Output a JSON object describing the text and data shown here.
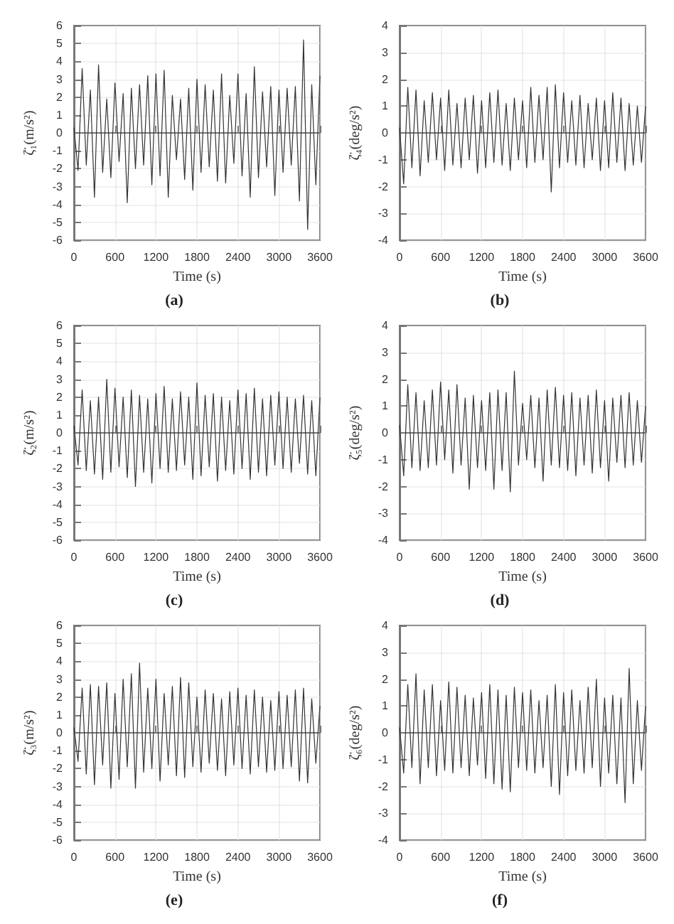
{
  "chart_data": [
    {
      "type": "line",
      "xlabel": "Time (s)",
      "ylabel": "ζ̈₁(m/s²)",
      "annotations": [
        "(a)"
      ],
      "grid": true,
      "xlim": [
        0,
        3600
      ],
      "xticks": [
        0,
        600,
        1200,
        1800,
        2400,
        3000,
        3600
      ],
      "ylim": [
        -6,
        6
      ],
      "yticks": [
        -6,
        -5,
        -4,
        -3,
        -2,
        -1,
        0,
        1,
        2,
        3,
        4,
        5,
        6
      ],
      "x": [
        0,
        60,
        120,
        180,
        240,
        300,
        360,
        420,
        480,
        540,
        600,
        660,
        720,
        780,
        840,
        900,
        960,
        1020,
        1080,
        1140,
        1200,
        1260,
        1320,
        1380,
        1440,
        1500,
        1560,
        1620,
        1680,
        1740,
        1800,
        1860,
        1920,
        1980,
        2040,
        2100,
        2160,
        2220,
        2280,
        2340,
        2400,
        2460,
        2520,
        2580,
        2640,
        2700,
        2760,
        2820,
        2880,
        2940,
        3000,
        3060,
        3120,
        3180,
        3240,
        3300,
        3360,
        3420,
        3480,
        3540,
        3600
      ],
      "series": [
        {
          "color": "#333333",
          "values": [
            0.3,
            -2.1,
            3.6,
            -1.8,
            2.4,
            -3.6,
            3.8,
            -2.2,
            1.9,
            -2.5,
            2.8,
            -1.6,
            2.2,
            -3.9,
            2.5,
            -2.0,
            2.7,
            -1.8,
            3.2,
            -2.9,
            3.3,
            -2.4,
            3.5,
            -3.6,
            2.1,
            -1.5,
            1.9,
            -2.6,
            2.5,
            -3.2,
            3.0,
            -2.2,
            2.7,
            -1.9,
            2.4,
            -2.7,
            3.3,
            -2.8,
            2.1,
            -1.7,
            3.3,
            -2.4,
            2.2,
            -3.6,
            3.7,
            -2.5,
            2.3,
            -1.9,
            2.6,
            -3.5,
            2.4,
            -2.2,
            2.5,
            -1.8,
            2.6,
            -3.8,
            5.2,
            -5.4,
            2.7,
            -2.9,
            3.2
          ]
        }
      ]
    },
    {
      "type": "line",
      "xlabel": "Time (s)",
      "ylabel": "ζ̈₄(deg/s²)",
      "annotations": [
        "(b)"
      ],
      "grid": true,
      "xlim": [
        0,
        3600
      ],
      "xticks": [
        0,
        600,
        1200,
        1800,
        2400,
        3000,
        3600
      ],
      "ylim": [
        -4,
        4
      ],
      "yticks": [
        -4,
        -3,
        -2,
        -1,
        0,
        1,
        2,
        3,
        4
      ],
      "x": [
        0,
        60,
        120,
        180,
        240,
        300,
        360,
        420,
        480,
        540,
        600,
        660,
        720,
        780,
        840,
        900,
        960,
        1020,
        1080,
        1140,
        1200,
        1260,
        1320,
        1380,
        1440,
        1500,
        1560,
        1620,
        1680,
        1740,
        1800,
        1860,
        1920,
        1980,
        2040,
        2100,
        2160,
        2220,
        2280,
        2340,
        2400,
        2460,
        2520,
        2580,
        2640,
        2700,
        2760,
        2820,
        2880,
        2940,
        3000,
        3060,
        3120,
        3180,
        3240,
        3300,
        3360,
        3420,
        3480,
        3540,
        3600
      ],
      "series": [
        {
          "color": "#333333",
          "values": [
            0.2,
            -1.9,
            1.7,
            -1.3,
            1.6,
            -1.6,
            1.2,
            -1.1,
            1.5,
            -1.0,
            1.3,
            -1.4,
            1.6,
            -1.2,
            1.1,
            -1.3,
            1.3,
            -1.0,
            1.4,
            -1.5,
            1.2,
            -1.3,
            1.5,
            -1.1,
            1.6,
            -1.2,
            1.1,
            -1.4,
            1.3,
            -1.0,
            1.2,
            -1.3,
            1.7,
            -1.1,
            1.4,
            -1.0,
            1.7,
            -2.2,
            1.8,
            -1.3,
            1.5,
            -1.1,
            1.2,
            -1.2,
            1.4,
            -1.3,
            1.1,
            -1.0,
            1.3,
            -1.4,
            1.2,
            -1.3,
            1.5,
            -1.1,
            1.3,
            -1.4,
            1.1,
            -1.2,
            1.0,
            -1.1,
            1.0
          ]
        }
      ]
    },
    {
      "type": "line",
      "xlabel": "Time (s)",
      "ylabel": "ζ̈₂(m/s²)",
      "annotations": [
        "(c)"
      ],
      "grid": true,
      "xlim": [
        0,
        3600
      ],
      "xticks": [
        0,
        600,
        1200,
        1800,
        2400,
        3000,
        3600
      ],
      "ylim": [
        -6,
        6
      ],
      "yticks": [
        -6,
        -5,
        -4,
        -3,
        -2,
        -1,
        0,
        1,
        2,
        3,
        4,
        5,
        6
      ],
      "x": [
        0,
        60,
        120,
        180,
        240,
        300,
        360,
        420,
        480,
        540,
        600,
        660,
        720,
        780,
        840,
        900,
        960,
        1020,
        1080,
        1140,
        1200,
        1260,
        1320,
        1380,
        1440,
        1500,
        1560,
        1620,
        1680,
        1740,
        1800,
        1860,
        1920,
        1980,
        2040,
        2100,
        2160,
        2220,
        2280,
        2340,
        2400,
        2460,
        2520,
        2580,
        2640,
        2700,
        2760,
        2820,
        2880,
        2940,
        3000,
        3060,
        3120,
        3180,
        3240,
        3300,
        3360,
        3420,
        3480,
        3540,
        3600
      ],
      "series": [
        {
          "color": "#333333",
          "values": [
            0.4,
            -1.8,
            2.4,
            -2.1,
            1.8,
            -2.3,
            2.0,
            -2.6,
            3.0,
            -2.2,
            2.5,
            -1.9,
            2.0,
            -2.5,
            2.4,
            -3.0,
            2.1,
            -2.2,
            1.9,
            -2.8,
            2.2,
            -2.0,
            2.6,
            -2.2,
            1.9,
            -2.1,
            2.3,
            -1.8,
            2.0,
            -2.6,
            2.8,
            -2.4,
            2.1,
            -1.9,
            2.2,
            -2.7,
            2.0,
            -2.1,
            1.8,
            -2.3,
            2.4,
            -2.0,
            2.2,
            -2.6,
            2.5,
            -2.2,
            1.9,
            -2.4,
            2.1,
            -1.8,
            2.3,
            -2.0,
            2.0,
            -2.2,
            1.9,
            -1.7,
            2.1,
            -2.3,
            1.8,
            -2.4,
            2.0
          ]
        }
      ]
    },
    {
      "type": "line",
      "xlabel": "Time (s)",
      "ylabel": "ζ̈₅(deg/s²)",
      "annotations": [
        "(d)"
      ],
      "grid": true,
      "xlim": [
        0,
        3600
      ],
      "xticks": [
        0,
        600,
        1200,
        1800,
        2400,
        3000,
        3600
      ],
      "ylim": [
        -4,
        4
      ],
      "yticks": [
        -4,
        -3,
        -2,
        -1,
        0,
        1,
        2,
        3,
        4
      ],
      "x": [
        0,
        60,
        120,
        180,
        240,
        300,
        360,
        420,
        480,
        540,
        600,
        660,
        720,
        780,
        840,
        900,
        960,
        1020,
        1080,
        1140,
        1200,
        1260,
        1320,
        1380,
        1440,
        1500,
        1560,
        1620,
        1680,
        1740,
        1800,
        1860,
        1920,
        1980,
        2040,
        2100,
        2160,
        2220,
        2280,
        2340,
        2400,
        2460,
        2520,
        2580,
        2640,
        2700,
        2760,
        2820,
        2880,
        2940,
        3000,
        3060,
        3120,
        3180,
        3240,
        3300,
        3360,
        3420,
        3480,
        3540,
        3600
      ],
      "series": [
        {
          "color": "#333333",
          "values": [
            0.3,
            -1.6,
            1.8,
            -1.3,
            1.5,
            -1.4,
            1.2,
            -1.3,
            1.6,
            -1.2,
            1.9,
            -1.0,
            1.6,
            -1.5,
            1.8,
            -1.2,
            1.3,
            -2.1,
            1.4,
            -1.3,
            1.2,
            -1.4,
            1.5,
            -2.1,
            1.6,
            -1.4,
            1.5,
            -2.2,
            2.3,
            -1.2,
            1.1,
            -1.0,
            1.4,
            -1.3,
            1.3,
            -1.8,
            1.6,
            -1.2,
            1.7,
            -1.3,
            1.4,
            -1.4,
            1.5,
            -1.6,
            1.3,
            -1.2,
            1.4,
            -1.5,
            1.6,
            -1.3,
            1.2,
            -1.8,
            1.3,
            -1.1,
            1.4,
            -1.3,
            1.5,
            -1.2,
            1.2,
            -1.1,
            1.0
          ]
        }
      ]
    },
    {
      "type": "line",
      "xlabel": "Time (s)",
      "ylabel": "ζ̈₃(m/s²)",
      "annotations": [
        "(e)"
      ],
      "grid": true,
      "xlim": [
        0,
        3600
      ],
      "xticks": [
        0,
        600,
        1200,
        1800,
        2400,
        3000,
        3600
      ],
      "ylim": [
        -6,
        6
      ],
      "yticks": [
        -6,
        -5,
        -4,
        -3,
        -2,
        -1,
        0,
        1,
        2,
        3,
        4,
        5,
        6
      ],
      "x": [
        0,
        60,
        120,
        180,
        240,
        300,
        360,
        420,
        480,
        540,
        600,
        660,
        720,
        780,
        840,
        900,
        960,
        1020,
        1080,
        1140,
        1200,
        1260,
        1320,
        1380,
        1440,
        1500,
        1560,
        1620,
        1680,
        1740,
        1800,
        1860,
        1920,
        1980,
        2040,
        2100,
        2160,
        2220,
        2280,
        2340,
        2400,
        2460,
        2520,
        2580,
        2640,
        2700,
        2760,
        2820,
        2880,
        2940,
        3000,
        3060,
        3120,
        3180,
        3240,
        3300,
        3360,
        3420,
        3480,
        3540,
        3600
      ],
      "series": [
        {
          "color": "#333333",
          "values": [
            0.3,
            -1.6,
            2.5,
            -2.3,
            2.7,
            -2.9,
            2.6,
            -1.8,
            2.8,
            -3.1,
            2.2,
            -2.6,
            3.0,
            -1.9,
            3.3,
            -3.1,
            3.9,
            -2.2,
            2.5,
            -2.0,
            3.0,
            -2.7,
            2.2,
            -1.8,
            2.6,
            -2.4,
            3.1,
            -2.5,
            2.8,
            -1.9,
            2.0,
            -2.2,
            2.4,
            -1.7,
            2.2,
            -2.1,
            1.9,
            -2.4,
            2.3,
            -1.8,
            2.5,
            -2.0,
            2.1,
            -2.3,
            2.4,
            -1.9,
            2.0,
            -2.2,
            1.8,
            -2.1,
            2.3,
            -2.0,
            2.1,
            -1.9,
            2.4,
            -2.7,
            2.5,
            -2.8,
            1.9,
            -1.7,
            1.5
          ]
        }
      ]
    },
    {
      "type": "line",
      "xlabel": "Time (s)",
      "ylabel": "ζ̈₆(deg/s²)",
      "annotations": [
        "(f)"
      ],
      "grid": true,
      "xlim": [
        0,
        3600
      ],
      "xticks": [
        0,
        600,
        1200,
        1800,
        2400,
        3000,
        3600
      ],
      "ylim": [
        -4,
        4
      ],
      "yticks": [
        -4,
        -3,
        -2,
        -1,
        0,
        1,
        2,
        3,
        4
      ],
      "x": [
        0,
        60,
        120,
        180,
        240,
        300,
        360,
        420,
        480,
        540,
        600,
        660,
        720,
        780,
        840,
        900,
        960,
        1020,
        1080,
        1140,
        1200,
        1260,
        1320,
        1380,
        1440,
        1500,
        1560,
        1620,
        1680,
        1740,
        1800,
        1860,
        1920,
        1980,
        2040,
        2100,
        2160,
        2220,
        2280,
        2340,
        2400,
        2460,
        2520,
        2580,
        2640,
        2700,
        2760,
        2820,
        2880,
        2940,
        3000,
        3060,
        3120,
        3180,
        3240,
        3300,
        3360,
        3420,
        3480,
        3540,
        3600
      ],
      "series": [
        {
          "color": "#333333",
          "values": [
            0.2,
            -1.5,
            1.8,
            -1.3,
            2.2,
            -1.9,
            1.6,
            -1.3,
            1.8,
            -1.6,
            1.2,
            -1.4,
            1.9,
            -1.5,
            1.7,
            -1.3,
            1.4,
            -1.6,
            1.3,
            -1.2,
            1.5,
            -1.7,
            1.8,
            -1.9,
            1.6,
            -2.1,
            1.4,
            -2.2,
            1.7,
            -1.3,
            1.5,
            -1.4,
            1.6,
            -1.5,
            1.2,
            -1.3,
            1.4,
            -2.0,
            1.8,
            -2.3,
            1.5,
            -1.6,
            1.6,
            -1.4,
            1.2,
            -1.5,
            1.7,
            -1.3,
            2.0,
            -2.0,
            1.3,
            -1.5,
            1.4,
            -1.9,
            1.3,
            -2.6,
            2.4,
            -1.9,
            1.2,
            -1.4,
            1.0
          ]
        }
      ]
    }
  ]
}
